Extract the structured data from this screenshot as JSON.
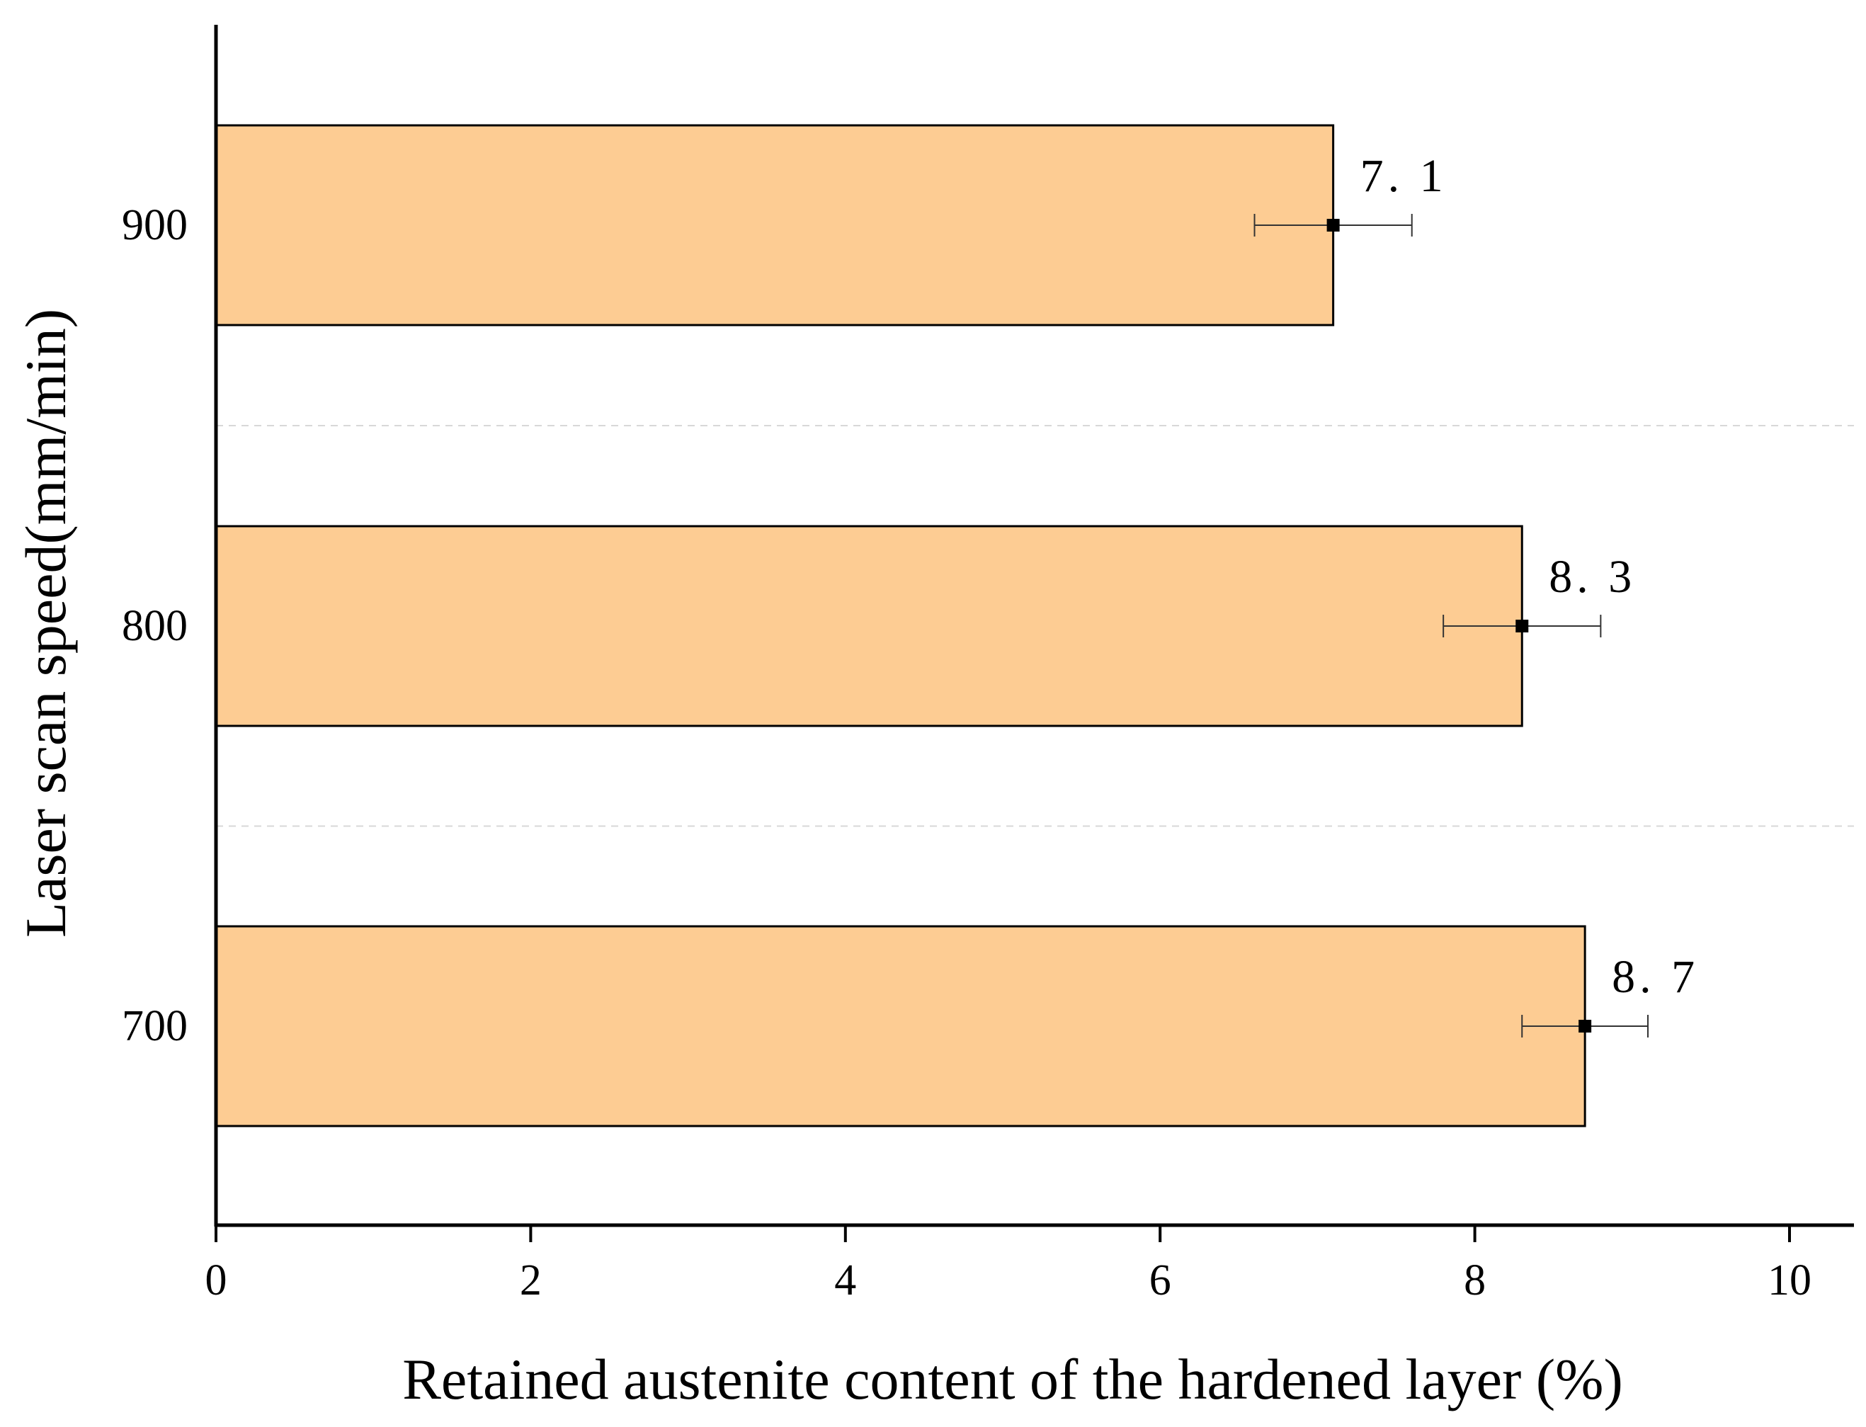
{
  "chart_data": {
    "type": "bar",
    "orientation": "horizontal",
    "title": "",
    "xlabel": "Retained austenite content of the hardened layer (%)",
    "ylabel": "Laser scan speed(mm/min)",
    "categories": [
      "700",
      "800",
      "900"
    ],
    "values": [
      8.7,
      8.3,
      7.1
    ],
    "errors": [
      0.4,
      0.5,
      0.5
    ],
    "data_labels": [
      "8. 7",
      "8. 3",
      "7. 1"
    ],
    "xlim": [
      0,
      10.4
    ],
    "xticks": [
      0,
      2,
      4,
      6,
      8,
      10
    ],
    "xtick_labels": [
      "0",
      "2",
      "4",
      "6",
      "8",
      "10"
    ],
    "grid": "horizontal dashed lines between categories",
    "legend": "none",
    "colors": {
      "bar_fill": "#fdcc93",
      "bar_stroke": "#000000",
      "error_bar": "#333333",
      "marker": "#000000",
      "grid": "#d8d8d8",
      "axis": "#000000"
    }
  }
}
